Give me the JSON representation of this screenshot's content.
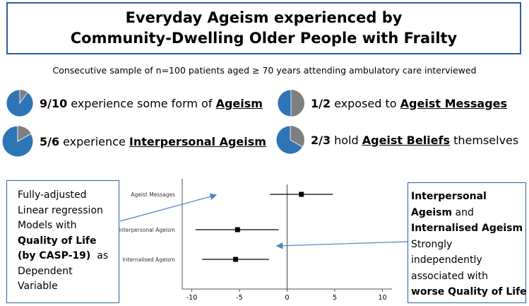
{
  "title": {
    "line1": "Everyday Ageism experienced by",
    "line2": "Community-Dwelling Older People with Frailty"
  },
  "subtitle": "Consecutive sample of n=100 patients aged ≥ 70 years attending ambulatory care interviewed",
  "stats": [
    {
      "fraction": "9/10",
      "pre": "experience some form of",
      "key": "Ageism",
      "post": "",
      "pie_fraction": 0.9,
      "color_main": "#2e75b6",
      "color_rest": "#7f7f7f"
    },
    {
      "fraction": "1/2",
      "pre": "exposed to",
      "key": "Ageist Messages",
      "post": "",
      "pie_fraction": 0.5,
      "color_main": "#2e75b6",
      "color_rest": "#7f7f7f"
    },
    {
      "fraction": "5/6",
      "pre": "experience",
      "key": "Interpersonal Ageism",
      "post": "",
      "pie_fraction": 0.833,
      "color_main": "#2e75b6",
      "color_rest": "#7f7f7f"
    },
    {
      "fraction": "2/3",
      "pre": "hold",
      "key": "Ageist Beliefs",
      "post": "themselves",
      "pie_fraction": 0.667,
      "color_main": "#2e75b6",
      "color_rest": "#7f7f7f"
    }
  ],
  "left_box": {
    "l1": "Fully-adjusted",
    "l2": "Linear regression",
    "l3": "Models with",
    "l4": "Quality of Life",
    "l5": "(by CASP-19)",
    "l5b": "as",
    "l6": "Dependent",
    "l7": "Variable"
  },
  "right_box": {
    "l1": "Interpersonal",
    "l2a": "Ageism",
    "l2b": "and",
    "l3": "Internalised Ageism",
    "l4": "Strongly",
    "l5": "independently",
    "l6": "associated with",
    "l7": "worse Quality of Life"
  },
  "chart_data": {
    "type": "scatter",
    "subtype": "forest",
    "categories": [
      "Ageist Messages",
      "Interpersonal Ageism",
      "Internalised Ageism"
    ],
    "estimate": [
      1.5,
      -5.2,
      -5.4
    ],
    "ci_low": [
      -1.8,
      -9.6,
      -8.9
    ],
    "ci_high": [
      4.8,
      -0.9,
      -1.9
    ],
    "xlim": [
      -11,
      11
    ],
    "xticks": [
      "-10",
      "-5",
      "0",
      "5",
      "10"
    ],
    "xtick_values": [
      -10,
      -5,
      0,
      5,
      10
    ],
    "reference_line": 0,
    "marker_color": "#000000",
    "arrow_color": "#4a86c8"
  }
}
